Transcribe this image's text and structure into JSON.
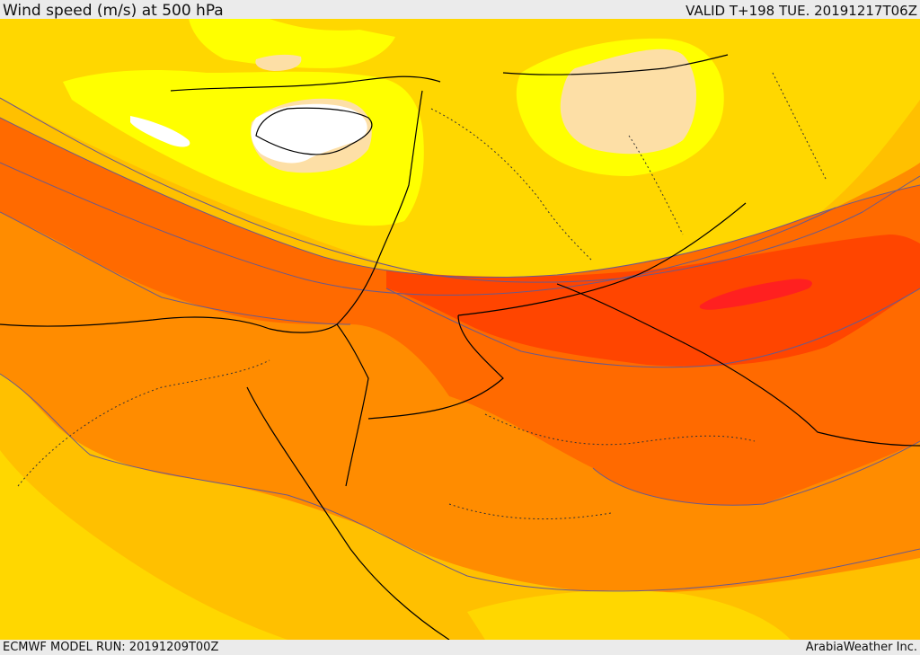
{
  "header": {
    "title": "Wind speed (m/s) at 500 hPa",
    "valid_time": "VALID T+198 TUE. 20191217T06Z"
  },
  "footer": {
    "model_run": "ECMWF MODEL RUN: 20191209T00Z",
    "credit": "ArabiaWeather Inc."
  },
  "map": {
    "variable": "wind-speed-500hpa",
    "palette": {
      "calm": "#ffffff",
      "very_light": "#fddfa6",
      "light": "#ffff00",
      "moderate_low": "#ffd700",
      "moderate": "#ffc000",
      "strong": "#ff8c00",
      "stronger": "#ff6a00",
      "jet": "#ff4500",
      "jet_core": "#ff2020",
      "contour": "#6b5a8a",
      "coastline": "#000000"
    }
  }
}
